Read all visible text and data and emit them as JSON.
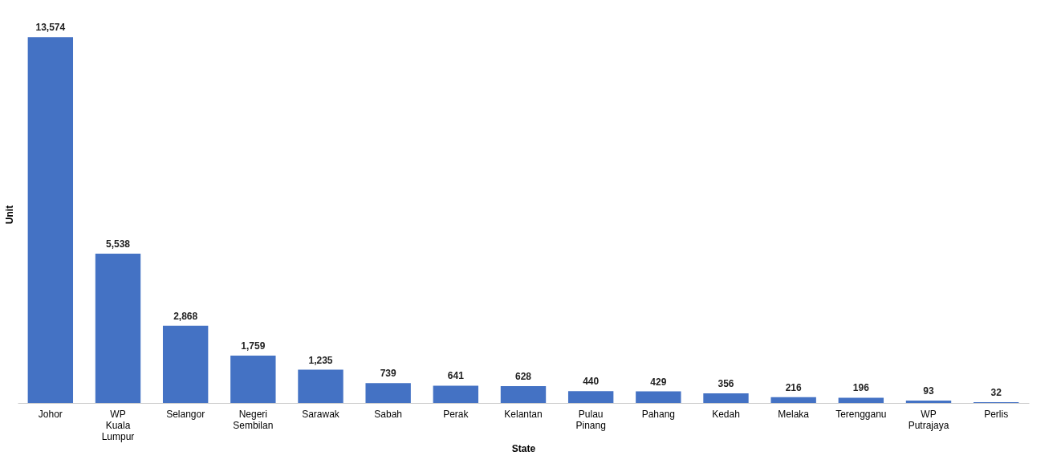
{
  "chart_data": {
    "type": "bar",
    "xlabel": "State",
    "ylabel": "Unit",
    "categories": [
      "Johor",
      "WP Kuala Lumpur",
      "Selangor",
      "Negeri Sembilan",
      "Sarawak",
      "Sabah",
      "Perak",
      "Kelantan",
      "Pulau Pinang",
      "Pahang",
      "Kedah",
      "Melaka",
      "Terengganu",
      "WP Putrajaya",
      "Perlis"
    ],
    "values": [
      13574,
      5538,
      2868,
      1759,
      1235,
      739,
      641,
      628,
      440,
      429,
      356,
      216,
      196,
      93,
      32
    ],
    "value_labels": [
      "13,574",
      "5,538",
      "2,868",
      "1,759",
      "1,235",
      "739",
      "641",
      "628",
      "440",
      "429",
      "356",
      "216",
      "196",
      "93",
      "32"
    ],
    "color": "#4472c4",
    "tick_labels": "x"
  }
}
